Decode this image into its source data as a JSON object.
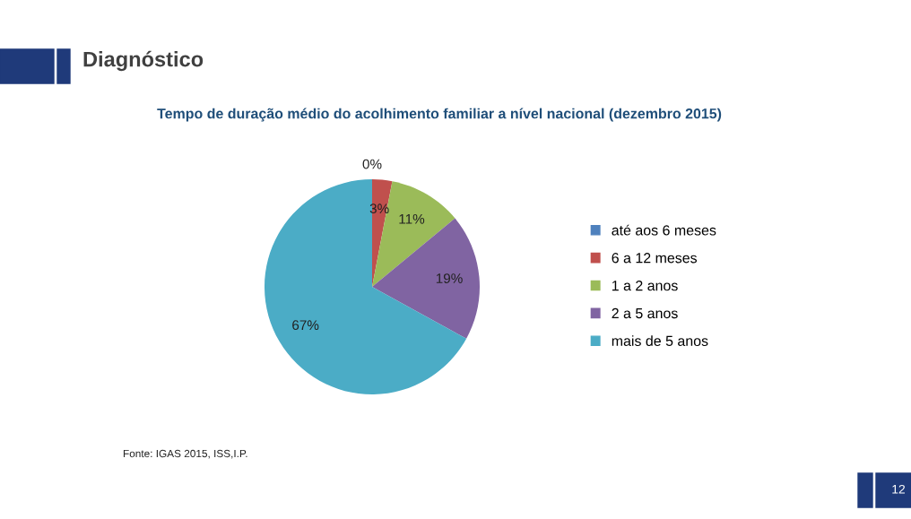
{
  "chart_data": {
    "type": "pie",
    "title": "Diagnóstico",
    "subtitle": "Tempo de duração médio do acolhimento familiar a nível nacional (dezembro 2015)",
    "categories": [
      "até aos 6 meses",
      "6 a 12 meses",
      "1 a 2 anos",
      "2 a 5 anos",
      "mais de 5 anos"
    ],
    "values": [
      0,
      3,
      11,
      19,
      67
    ],
    "value_labels": [
      "0%",
      "3%",
      "11%",
      "19%",
      "67%"
    ],
    "colors": [
      "#4f81bd",
      "#c0504d",
      "#9bbb59",
      "#8064a2",
      "#4bacc6"
    ],
    "legend": "right",
    "annotations": [
      "Fonte: IGAS 2015, ISS,I.P.",
      "12"
    ]
  }
}
